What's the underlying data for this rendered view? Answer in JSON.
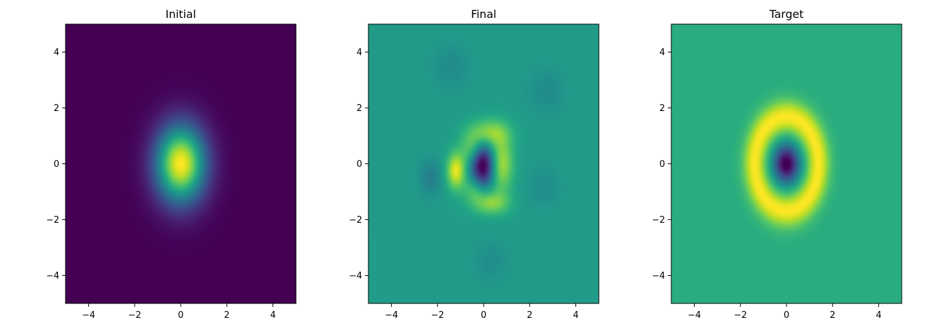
{
  "chart_data": [
    {
      "type": "heatmap",
      "title": "Initial",
      "field": "gaussian",
      "xlim": [
        -5,
        5
      ],
      "ylim": [
        -5,
        5
      ],
      "xticks": [
        -4,
        -2,
        0,
        2,
        4
      ],
      "yticks": [
        -4,
        -2,
        0,
        2,
        4
      ],
      "xtick_labels": [
        "−4",
        "−2",
        "0",
        "2",
        "4"
      ],
      "ytick_labels": [
        "−4",
        "−2",
        "0",
        "2",
        "4"
      ],
      "colormap": "viridis",
      "background_color": "#440154",
      "peak": {
        "x": 0,
        "y": 0
      },
      "sigma_x": 0.75,
      "sigma_y": 0.95
    },
    {
      "type": "heatmap",
      "title": "Final",
      "field": "ring-approx",
      "xlim": [
        -5,
        5
      ],
      "ylim": [
        -5,
        5
      ],
      "xticks": [
        -4,
        -2,
        0,
        2,
        4
      ],
      "yticks": [
        -4,
        -2,
        0,
        2,
        4
      ],
      "xtick_labels": [
        "−4",
        "−2",
        "0",
        "2",
        "4"
      ],
      "ytick_labels": [
        "−4",
        "−2",
        "0",
        "2",
        "4"
      ],
      "colormap": "viridis",
      "background_color": "#23a586",
      "minimum": {
        "x": 0,
        "y": 0
      }
    },
    {
      "type": "heatmap",
      "title": "Target",
      "field": "ring",
      "xlim": [
        -5,
        5
      ],
      "ylim": [
        -5,
        5
      ],
      "xticks": [
        -4,
        -2,
        0,
        2,
        4
      ],
      "yticks": [
        -4,
        -2,
        0,
        2,
        4
      ],
      "xtick_labels": [
        "−4",
        "−2",
        "0",
        "2",
        "4"
      ],
      "ytick_labels": [
        "−4",
        "−2",
        "0",
        "2",
        "4"
      ],
      "colormap": "viridis",
      "background_color": "#42bd72",
      "minimum": {
        "x": 0,
        "y": 0
      },
      "ring_radius": 1.5
    }
  ]
}
